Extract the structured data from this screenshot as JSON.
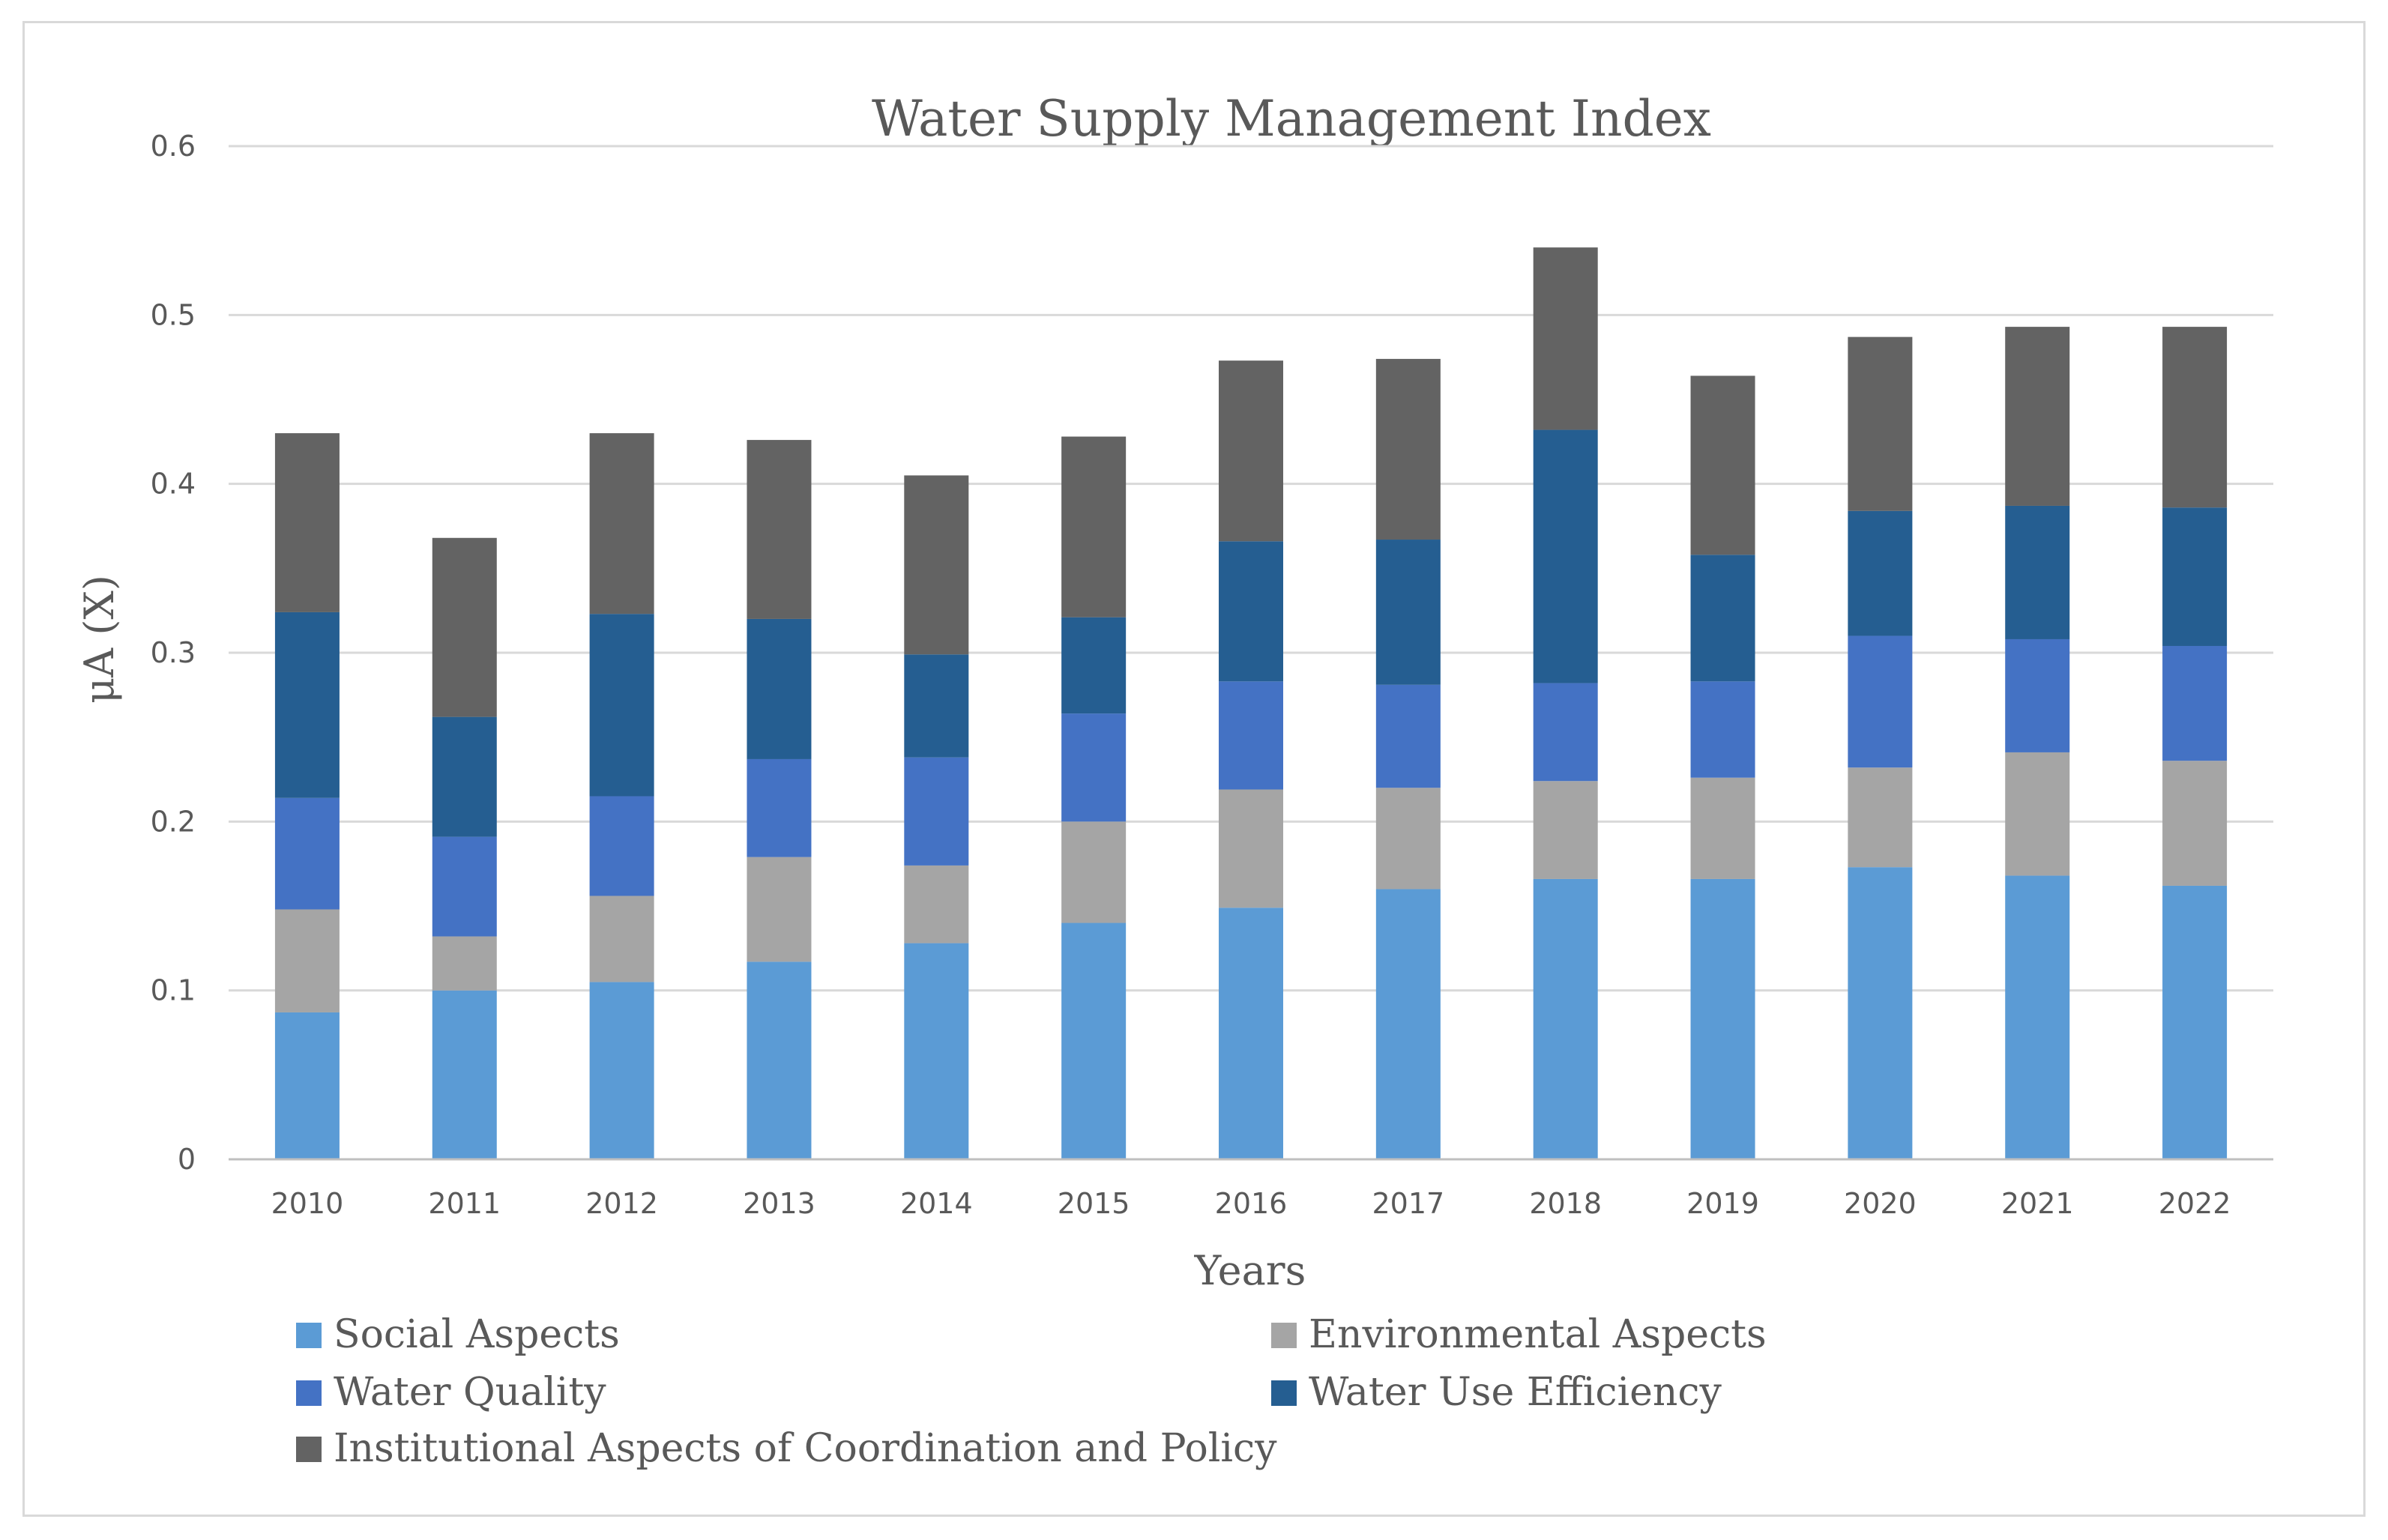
{
  "chart_data": {
    "type": "bar",
    "stacked": true,
    "title": "Water Supply Management Index",
    "xlabel": "Years",
    "ylabel": "μA (X)",
    "ylim": [
      0,
      0.6
    ],
    "yticks": [
      0,
      0.1,
      0.2,
      0.3,
      0.4,
      0.5,
      0.6
    ],
    "ytick_labels": [
      "0",
      "0.1",
      "0.2",
      "0.3",
      "0.4",
      "0.5",
      "0.6"
    ],
    "grid": true,
    "legend_position": "bottom",
    "categories": [
      "2010",
      "2011",
      "2012",
      "2013",
      "2014",
      "2015",
      "2016",
      "2017",
      "2018",
      "2019",
      "2020",
      "2021",
      "2022"
    ],
    "series": [
      {
        "name": "Social Aspects",
        "color": "#5b9bd5",
        "values": [
          0.087,
          0.1,
          0.105,
          0.117,
          0.128,
          0.14,
          0.149,
          0.16,
          0.166,
          0.166,
          0.173,
          0.168,
          0.162
        ]
      },
      {
        "name": "Environmental Aspects",
        "color": "#a5a5a5",
        "values": [
          0.061,
          0.032,
          0.051,
          0.062,
          0.046,
          0.06,
          0.07,
          0.06,
          0.058,
          0.06,
          0.059,
          0.073,
          0.074
        ]
      },
      {
        "name": "Water Quality",
        "color": "#4472c4",
        "values": [
          0.066,
          0.059,
          0.059,
          0.058,
          0.064,
          0.064,
          0.064,
          0.061,
          0.058,
          0.057,
          0.078,
          0.067,
          0.068
        ]
      },
      {
        "name": "Water Use Efficiency",
        "color": "#255e91",
        "values": [
          0.11,
          0.071,
          0.108,
          0.083,
          0.061,
          0.057,
          0.083,
          0.086,
          0.15,
          0.075,
          0.074,
          0.079,
          0.082
        ]
      },
      {
        "name": "Institutional Aspects of Coordination and Policy",
        "color": "#636363",
        "values": [
          0.106,
          0.106,
          0.107,
          0.106,
          0.106,
          0.107,
          0.107,
          0.107,
          0.108,
          0.106,
          0.103,
          0.106,
          0.107
        ]
      }
    ]
  }
}
